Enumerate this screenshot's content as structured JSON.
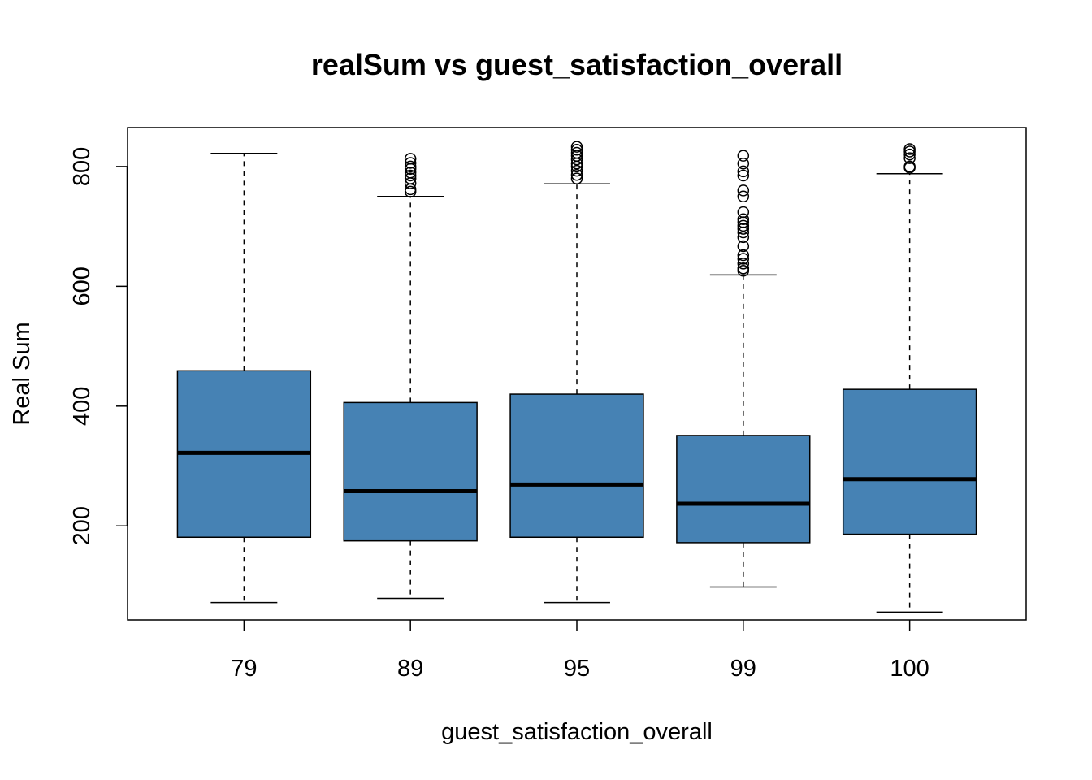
{
  "chart_data": {
    "type": "boxplot",
    "title": "realSum vs guest_satisfaction_overall",
    "xlabel": "guest_satisfaction_overall",
    "ylabel": "Real Sum",
    "ylim": [
      43,
      865
    ],
    "yticks": [
      200,
      400,
      600,
      800
    ],
    "box_color": "#4682b4",
    "categories": [
      "79",
      "89",
      "95",
      "99",
      "100"
    ],
    "boxes": [
      {
        "category": "79",
        "whisker_low": 72,
        "q1": 181,
        "median": 322,
        "q3": 459,
        "whisker_high": 822,
        "outliers": []
      },
      {
        "category": "89",
        "whisker_low": 79,
        "q1": 175,
        "median": 258,
        "q3": 406,
        "whisker_high": 750,
        "outliers": [
          758,
          762,
          772,
          780,
          785,
          790,
          796,
          800,
          806,
          813
        ]
      },
      {
        "category": "95",
        "whisker_low": 72,
        "q1": 181,
        "median": 269,
        "q3": 420,
        "whisker_high": 771,
        "outliers": [
          780,
          786,
          793,
          800,
          805,
          812,
          818,
          823,
          828,
          833
        ]
      },
      {
        "category": "99",
        "whisker_low": 98,
        "q1": 172,
        "median": 237,
        "q3": 351,
        "whisker_high": 619,
        "outliers": [
          626,
          630,
          638,
          646,
          652,
          667,
          682,
          690,
          696,
          701,
          707,
          712,
          724,
          750,
          760,
          785,
          792,
          805,
          818
        ]
      },
      {
        "category": "100",
        "whisker_low": 56,
        "q1": 186,
        "median": 278,
        "q3": 428,
        "whisker_high": 788,
        "outliers": [
          798,
          800,
          814,
          820,
          825,
          829
        ]
      }
    ]
  }
}
